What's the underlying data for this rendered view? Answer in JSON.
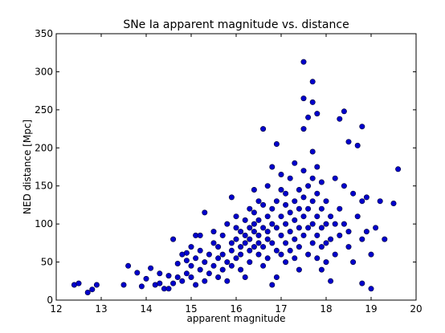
{
  "chart_data": {
    "type": "scatter",
    "title": "SNe Ia apparent magnitude vs. distance",
    "xlabel": "apparent magnitude",
    "ylabel": "NED distance [Mpc]",
    "xlim": [
      12,
      20
    ],
    "ylim": [
      0,
      350
    ],
    "xticks": [
      12,
      13,
      14,
      15,
      16,
      17,
      18,
      19,
      20
    ],
    "yticks": [
      0,
      50,
      100,
      150,
      200,
      250,
      300,
      350
    ],
    "grid": false,
    "marker_color": "#0000cc",
    "marker_edge": "#000033",
    "points": [
      [
        12.4,
        20
      ],
      [
        12.5,
        22
      ],
      [
        12.7,
        10
      ],
      [
        12.8,
        14
      ],
      [
        12.9,
        20
      ],
      [
        13.5,
        20
      ],
      [
        13.6,
        45
      ],
      [
        13.8,
        36
      ],
      [
        13.9,
        18
      ],
      [
        14.0,
        28
      ],
      [
        14.1,
        42
      ],
      [
        14.2,
        20
      ],
      [
        14.3,
        22
      ],
      [
        14.3,
        35
      ],
      [
        14.4,
        15
      ],
      [
        14.5,
        15
      ],
      [
        14.5,
        32
      ],
      [
        14.6,
        22
      ],
      [
        14.6,
        80
      ],
      [
        14.7,
        48
      ],
      [
        14.7,
        30
      ],
      [
        14.8,
        60
      ],
      [
        14.8,
        25
      ],
      [
        14.9,
        52
      ],
      [
        14.9,
        35
      ],
      [
        14.9,
        62
      ],
      [
        15.0,
        70
      ],
      [
        15.0,
        45
      ],
      [
        15.0,
        30
      ],
      [
        15.1,
        85
      ],
      [
        15.1,
        55
      ],
      [
        15.1,
        20
      ],
      [
        15.2,
        65
      ],
      [
        15.2,
        40
      ],
      [
        15.2,
        85
      ],
      [
        15.3,
        115
      ],
      [
        15.3,
        50
      ],
      [
        15.3,
        25
      ],
      [
        15.4,
        60
      ],
      [
        15.4,
        35
      ],
      [
        15.5,
        75
      ],
      [
        15.5,
        45
      ],
      [
        15.5,
        90
      ],
      [
        15.6,
        55
      ],
      [
        15.6,
        30
      ],
      [
        15.6,
        70
      ],
      [
        15.7,
        85
      ],
      [
        15.7,
        40
      ],
      [
        15.7,
        60
      ],
      [
        15.8,
        50
      ],
      [
        15.8,
        100
      ],
      [
        15.8,
        25
      ],
      [
        15.9,
        75
      ],
      [
        15.9,
        65
      ],
      [
        15.9,
        135
      ],
      [
        15.9,
        45
      ],
      [
        16.0,
        95
      ],
      [
        16.0,
        55
      ],
      [
        16.0,
        80
      ],
      [
        16.0,
        110
      ],
      [
        16.1,
        70
      ],
      [
        16.1,
        40
      ],
      [
        16.1,
        90
      ],
      [
        16.1,
        60
      ],
      [
        16.2,
        85
      ],
      [
        16.2,
        105
      ],
      [
        16.2,
        75
      ],
      [
        16.2,
        30
      ],
      [
        16.3,
        95
      ],
      [
        16.3,
        65
      ],
      [
        16.3,
        120
      ],
      [
        16.3,
        80
      ],
      [
        16.3,
        50
      ],
      [
        16.4,
        100
      ],
      [
        16.4,
        70
      ],
      [
        16.4,
        145
      ],
      [
        16.4,
        90
      ],
      [
        16.4,
        115
      ],
      [
        16.5,
        85
      ],
      [
        16.5,
        60
      ],
      [
        16.5,
        130
      ],
      [
        16.5,
        75
      ],
      [
        16.5,
        105
      ],
      [
        16.6,
        95
      ],
      [
        16.6,
        125
      ],
      [
        16.6,
        225
      ],
      [
        16.6,
        70
      ],
      [
        16.6,
        45
      ],
      [
        16.7,
        110
      ],
      [
        16.7,
        80
      ],
      [
        16.7,
        150
      ],
      [
        16.7,
        90
      ],
      [
        16.7,
        55
      ],
      [
        16.8,
        120
      ],
      [
        16.8,
        100
      ],
      [
        16.8,
        175
      ],
      [
        16.8,
        75
      ],
      [
        16.8,
        20
      ],
      [
        16.9,
        205
      ],
      [
        16.9,
        130
      ],
      [
        16.9,
        95
      ],
      [
        16.9,
        65
      ],
      [
        16.9,
        30
      ],
      [
        17.0,
        145
      ],
      [
        17.0,
        110
      ],
      [
        17.0,
        85
      ],
      [
        17.0,
        60
      ],
      [
        17.0,
        165
      ],
      [
        17.1,
        125
      ],
      [
        17.1,
        100
      ],
      [
        17.1,
        75
      ],
      [
        17.1,
        50
      ],
      [
        17.1,
        140
      ],
      [
        17.2,
        115
      ],
      [
        17.2,
        90
      ],
      [
        17.2,
        65
      ],
      [
        17.2,
        160
      ],
      [
        17.3,
        130
      ],
      [
        17.3,
        105
      ],
      [
        17.3,
        80
      ],
      [
        17.3,
        55
      ],
      [
        17.3,
        180
      ],
      [
        17.4,
        145
      ],
      [
        17.4,
        120
      ],
      [
        17.4,
        95
      ],
      [
        17.4,
        70
      ],
      [
        17.4,
        40
      ],
      [
        17.5,
        313
      ],
      [
        17.5,
        265
      ],
      [
        17.5,
        225
      ],
      [
        17.5,
        170
      ],
      [
        17.5,
        135
      ],
      [
        17.5,
        110
      ],
      [
        17.5,
        85
      ],
      [
        17.6,
        240
      ],
      [
        17.6,
        150
      ],
      [
        17.6,
        120
      ],
      [
        17.6,
        95
      ],
      [
        17.6,
        60
      ],
      [
        17.7,
        287
      ],
      [
        17.7,
        260
      ],
      [
        17.7,
        195
      ],
      [
        17.7,
        160
      ],
      [
        17.7,
        130
      ],
      [
        17.7,
        100
      ],
      [
        17.7,
        75
      ],
      [
        17.8,
        245
      ],
      [
        17.8,
        175
      ],
      [
        17.8,
        140
      ],
      [
        17.8,
        110
      ],
      [
        17.8,
        85
      ],
      [
        17.8,
        55
      ],
      [
        17.9,
        155
      ],
      [
        17.9,
        120
      ],
      [
        17.9,
        95
      ],
      [
        17.9,
        70
      ],
      [
        17.9,
        40
      ],
      [
        18.0,
        130
      ],
      [
        18.0,
        100
      ],
      [
        18.0,
        75
      ],
      [
        18.0,
        50
      ],
      [
        18.1,
        110
      ],
      [
        18.1,
        80
      ],
      [
        18.1,
        25
      ],
      [
        18.2,
        160
      ],
      [
        18.2,
        100
      ],
      [
        18.2,
        60
      ],
      [
        18.3,
        238
      ],
      [
        18.3,
        85
      ],
      [
        18.3,
        120
      ],
      [
        18.4,
        248
      ],
      [
        18.4,
        150
      ],
      [
        18.4,
        100
      ],
      [
        18.5,
        208
      ],
      [
        18.5,
        90
      ],
      [
        18.5,
        70
      ],
      [
        18.6,
        140
      ],
      [
        18.6,
        50
      ],
      [
        18.7,
        203
      ],
      [
        18.7,
        110
      ],
      [
        18.8,
        228
      ],
      [
        18.8,
        130
      ],
      [
        18.8,
        80
      ],
      [
        18.8,
        22
      ],
      [
        18.9,
        135
      ],
      [
        18.9,
        90
      ],
      [
        19.0,
        60
      ],
      [
        19.0,
        15
      ],
      [
        19.1,
        95
      ],
      [
        19.2,
        130
      ],
      [
        19.3,
        80
      ],
      [
        19.5,
        127
      ],
      [
        19.6,
        172
      ]
    ]
  }
}
